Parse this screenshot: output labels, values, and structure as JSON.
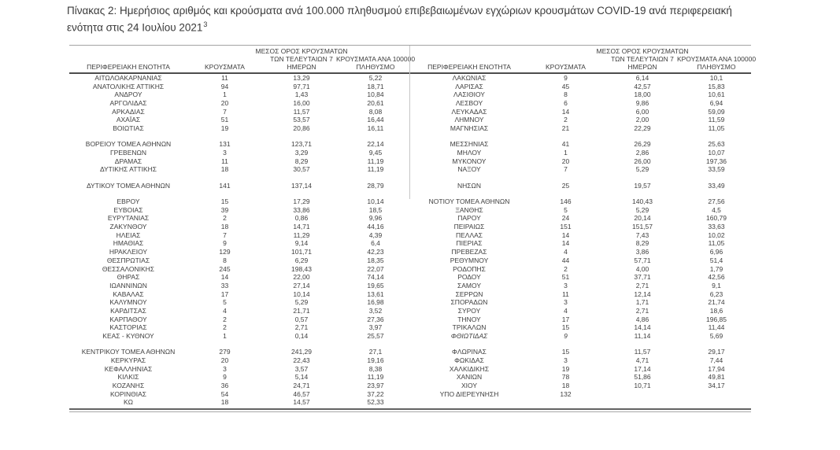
{
  "title": {
    "text": "Πίνακας 2:  Ημερήσιος αριθμός και κρούσματα ανά 100.000 πληθυσμού επιβεβαιωμένων εγχώριων κρουσμάτων COVID-19 ανά περιφερειακή ενότητα στις 24 Ιουλίου 2021",
    "footnote_ref": "3"
  },
  "headers": {
    "region": "ΠΕΡΙΦΕΡΕΙΑΚΗ ΕΝΟΤΗΤΑ",
    "cases": "ΚΡΟΥΣΜΑΤΑ",
    "avg7_line1": "ΜΕΣΟΣ ΟΡΟΣ ΚΡΟΥΣΜΑΤΩΝ",
    "avg7_line2": "ΤΩΝ ΤΕΛΕΥΤΑΙΩΝ 7",
    "avg7_line3": "ΗΜΕΡΩΝ",
    "per100k_line1": "ΚΡΟΥΣΜΑΤΑ ΑΝΑ 100000",
    "per100k_line2": "ΠΛΗΘΥΣΜΟ"
  },
  "tables": {
    "left": {
      "groups": [
        [
          [
            "ΑΙΤΩΛΟΑΚΑΡΝΑΝΙΑΣ",
            "11",
            "13,29",
            "5,22"
          ],
          [
            "ΑΝΑΤΟΛΙΚΗΣ ΑΤΤΙΚΗΣ",
            "94",
            "97,71",
            "18,71"
          ],
          [
            "ΑΝΔΡΟΥ",
            "1",
            "1,43",
            "10,84"
          ],
          [
            "ΑΡΓΟΛΙΔΑΣ",
            "20",
            "16,00",
            "20,61"
          ],
          [
            "ΑΡΚΑΔΙΑΣ",
            "7",
            "11,57",
            "8,08"
          ],
          [
            "ΑΧΑΪΑΣ",
            "51",
            "53,57",
            "16,44"
          ],
          [
            "ΒΟΙΩΤΙΑΣ",
            "19",
            "20,86",
            "16,11"
          ]
        ],
        [
          [
            "ΒΟΡΕΙΟΥ ΤΟΜΕΑ ΑΘΗΝΩΝ",
            "131",
            "123,71",
            "22,14"
          ],
          [
            "ΓΡΕΒΕΝΩΝ",
            "3",
            "3,29",
            "9,45"
          ],
          [
            "ΔΡΑΜΑΣ",
            "11",
            "8,29",
            "11,19"
          ],
          [
            "ΔΥΤΙΚΗΣ ΑΤΤΙΚΗΣ",
            "18",
            "30,57",
            "11,19"
          ]
        ],
        [
          [
            "ΔΥΤΙΚΟΥ ΤΟΜΕΑ ΑΘΗΝΩΝ",
            "141",
            "137,14",
            "28,79"
          ]
        ],
        [
          [
            "ΕΒΡΟΥ",
            "15",
            "17,29",
            "10,14"
          ],
          [
            "ΕΥΒΟΙΑΣ",
            "39",
            "33,86",
            "18,5"
          ],
          [
            "ΕΥΡΥΤΑΝΙΑΣ",
            "2",
            "0,86",
            "9,96"
          ],
          [
            "ΖΑΚΥΝΘΟΥ",
            "18",
            "14,71",
            "44,16"
          ],
          [
            "ΗΛΕΙΑΣ",
            "7",
            "11,29",
            "4,39"
          ],
          [
            "ΗΜΑΘΙΑΣ",
            "9",
            "9,14",
            "6,4"
          ],
          [
            "ΗΡΑΚΛΕΙΟΥ",
            "129",
            "101,71",
            "42,23"
          ],
          [
            "ΘΕΣΠΡΩΤΙΑΣ",
            "8",
            "6,29",
            "18,35"
          ],
          [
            "ΘΕΣΣΑΛΟΝΙΚΗΣ",
            "245",
            "198,43",
            "22,07"
          ],
          [
            "ΘΗΡΑΣ",
            "14",
            "22,00",
            "74,14"
          ],
          [
            "ΙΩΑΝΝΙΝΩΝ",
            "33",
            "27,14",
            "19,65"
          ],
          [
            "ΚΑΒΑΛΑΣ",
            "17",
            "10,14",
            "13,61"
          ],
          [
            "ΚΑΛΥΜΝΟΥ",
            "5",
            "5,29",
            "16,98"
          ],
          [
            "ΚΑΡΔΙΤΣΑΣ",
            "4",
            "21,71",
            "3,52"
          ],
          [
            "ΚΑΡΠΑΘΟΥ",
            "2",
            "0,57",
            "27,36"
          ],
          [
            "ΚΑΣΤΟΡΙΑΣ",
            "2",
            "2,71",
            "3,97"
          ],
          [
            "ΚΕΑΣ - ΚΥΘΝΟΥ",
            "1",
            "0,14",
            "25,57"
          ]
        ],
        [
          [
            "ΚΕΝΤΡΙΚΟΥ ΤΟΜΕΑ ΑΘΗΝΩΝ",
            "279",
            "241,29",
            "27,1"
          ],
          [
            "ΚΕΡΚΥΡΑΣ",
            "20",
            "22,43",
            "19,16"
          ],
          [
            "ΚΕΦΑΛΛΗΝΙΑΣ",
            "3",
            "3,57",
            "8,38"
          ],
          [
            "ΚΙΛΚΙΣ",
            "9",
            "5,14",
            "11,19"
          ],
          [
            "ΚΟΖΑΝΗΣ",
            "36",
            "24,71",
            "23,97"
          ],
          [
            "ΚΟΡΙΝΘΙΑΣ",
            "54",
            "46,57",
            "37,22"
          ],
          [
            "ΚΩ",
            "18",
            "14,57",
            "52,33"
          ]
        ]
      ]
    },
    "right": {
      "groups": [
        [
          [
            "ΛΑΚΩΝΙΑΣ",
            "9",
            "6,14",
            "10,1"
          ],
          [
            "ΛΑΡΙΣΑΣ",
            "45",
            "42,57",
            "15,83"
          ],
          [
            "ΛΑΣΙΘΙΟΥ",
            "8",
            "18,00",
            "10,61"
          ],
          [
            "ΛΕΣΒΟΥ",
            "6",
            "9,86",
            "6,94"
          ],
          [
            "ΛΕΥΚΑΔΑΣ",
            "14",
            "6,00",
            "59,09"
          ],
          [
            "ΛΗΜΝΟΥ",
            "2",
            "2,00",
            "11,59"
          ],
          [
            "ΜΑΓΝΗΣΙΑΣ",
            "21",
            "22,29",
            "11,05"
          ]
        ],
        [
          [
            "ΜΕΣΣΗΝΙΑΣ",
            "41",
            "26,29",
            "25,63"
          ],
          [
            "ΜΗΛΟΥ",
            "1",
            "2,86",
            "10,07"
          ],
          [
            "ΜΥΚΟΝΟΥ",
            "20",
            "26,00",
            "197,36"
          ],
          [
            "ΝΑΞΟΥ",
            "7",
            "5,29",
            "33,59"
          ]
        ],
        [
          [
            "ΝΗΣΩΝ",
            "25",
            "19,57",
            "33,49"
          ]
        ],
        [
          [
            "ΝΟΤΙΟΥ ΤΟΜΕΑ ΑΘΗΝΩΝ",
            "146",
            "140,43",
            "27,56"
          ],
          [
            "ΞΑΝΘΗΣ",
            "5",
            "5,29",
            "4,5"
          ],
          [
            "ΠΑΡΟΥ",
            "24",
            "20,14",
            "160,79"
          ],
          [
            "ΠΕΙΡΑΙΩΣ",
            "151",
            "151,57",
            "33,63"
          ],
          [
            "ΠΕΛΛΑΣ",
            "14",
            "7,43",
            "10,02"
          ],
          [
            "ΠΙΕΡΙΑΣ",
            "14",
            "8,29",
            "11,05"
          ],
          [
            "ΠΡΕΒΕΖΑΣ",
            "4",
            "3,86",
            "6,96"
          ],
          [
            "ΡΕΘΥΜΝΟΥ",
            "44",
            "57,71",
            "51,4"
          ],
          [
            "ΡΟΔΟΠΗΣ",
            "2",
            "4,00",
            "1,79"
          ],
          [
            "ΡΟΔΟΥ",
            "51",
            "37,71",
            "42,56"
          ],
          [
            "ΣΑΜΟΥ",
            "3",
            "2,71",
            "9,1"
          ],
          [
            "ΣΕΡΡΩΝ",
            "11",
            "12,14",
            "6,23"
          ],
          [
            "ΣΠΟΡΑΔΩΝ",
            "3",
            "1,71",
            "21,74"
          ],
          [
            "ΣΥΡΟΥ",
            "4",
            "2,71",
            "18,6"
          ],
          [
            "ΤΗΝΟΥ",
            "17",
            "4,86",
            "196,85"
          ],
          [
            "ΤΡΙΚΑΛΩΝ",
            "15",
            "14,14",
            "11,44"
          ],
          [
            "ΦΘΙΩΤΙΔΑΣ",
            "9",
            "11,14",
            "5,69",
            "italic"
          ]
        ],
        [
          [
            "ΦΛΩΡΙΝΑΣ",
            "15",
            "11,57",
            "29,17"
          ],
          [
            "ΦΩΚΙΔΑΣ",
            "3",
            "4,71",
            "7,44"
          ],
          [
            "ΧΑΛΚΙΔΙΚΗΣ",
            "19",
            "17,14",
            "17,94"
          ],
          [
            "ΧΑΝΙΩΝ",
            "78",
            "51,86",
            "49,81"
          ],
          [
            "ΧΙΟΥ",
            "18",
            "10,71",
            "34,17"
          ],
          [
            "ΥΠΟ ΔΙΕΡΕΥΝΗΣΗ",
            "132",
            "",
            ""
          ]
        ]
      ]
    }
  }
}
